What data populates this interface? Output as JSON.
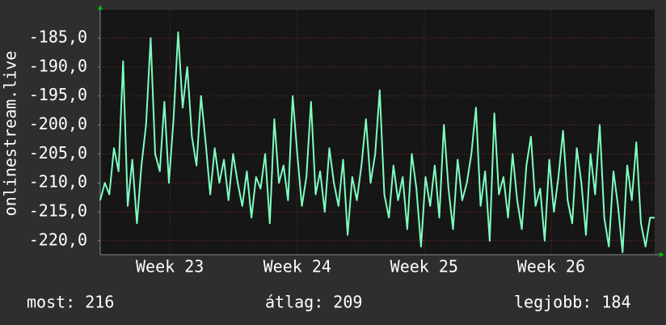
{
  "chart_data": {
    "type": "line",
    "y_label": "onlinestream.live",
    "color": "#7fffc0",
    "grid": true,
    "values": [
      -213,
      -210,
      -212,
      -204,
      -208,
      -189,
      -214,
      -206,
      -217,
      -207,
      -200,
      -185,
      -205,
      -208,
      -196,
      -210,
      -199,
      -184,
      -197,
      -190,
      -202,
      -207,
      -195,
      -203,
      -212,
      -204,
      -210,
      -206,
      -213,
      -205,
      -210,
      -214,
      -208,
      -216,
      -209,
      -211,
      -205,
      -217,
      -199,
      -210,
      -207,
      -213,
      -195,
      -205,
      -214,
      -209,
      -196,
      -212,
      -208,
      -215,
      -204,
      -210,
      -214,
      -206,
      -219,
      -209,
      -213,
      -207,
      -199,
      -210,
      -205,
      -194,
      -212,
      -216,
      -207,
      -213,
      -209,
      -218,
      -205,
      -211,
      -221,
      -209,
      -214,
      -207,
      -216,
      -200,
      -211,
      -218,
      -206,
      -213,
      -210,
      -205,
      -197,
      -214,
      -208,
      -220,
      -198,
      -212,
      -209,
      -216,
      -205,
      -213,
      -218,
      -207,
      -202,
      -214,
      -211,
      -220,
      -206,
      -215,
      -209,
      -201,
      -213,
      -217,
      -204,
      -210,
      -219,
      -205,
      -212,
      -200,
      -216,
      -221,
      -208,
      -214,
      -222,
      -207,
      -213,
      -203,
      -217,
      -221,
      -216,
      -216
    ],
    "xlim": [
      0,
      121
    ],
    "xticks": [
      {
        "value": 15.2,
        "label": "Week 23"
      },
      {
        "value": 43.0,
        "label": "Week 24"
      },
      {
        "value": 70.7,
        "label": "Week 25"
      },
      {
        "value": 98.4,
        "label": "Week 26"
      }
    ],
    "ylim": [
      -222.4,
      -180.1
    ],
    "yticks": [
      {
        "value": -220,
        "label": "-220,0"
      },
      {
        "value": -215,
        "label": "-215,0"
      },
      {
        "value": -210,
        "label": "-210,0"
      },
      {
        "value": -205,
        "label": "-205,0"
      },
      {
        "value": -200,
        "label": "-200,0"
      },
      {
        "value": -195,
        "label": "-195,0"
      },
      {
        "value": -190,
        "label": "-190,0"
      },
      {
        "value": -185,
        "label": "-185,0"
      }
    ],
    "summary": [
      "most: 216",
      "átlag: 209",
      "legjobb: 184"
    ]
  }
}
